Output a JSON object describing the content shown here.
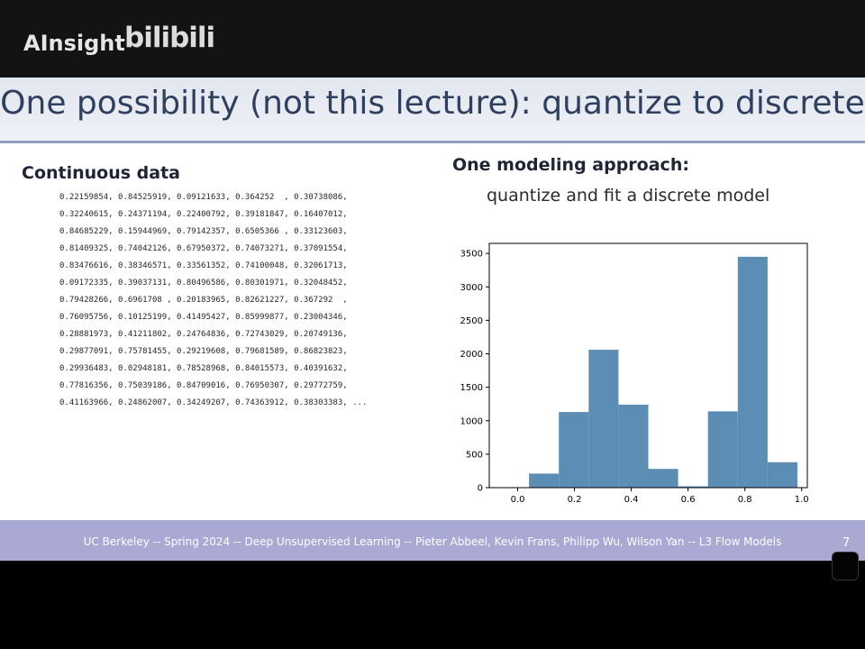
{
  "overlay": {
    "brand": "AInsight",
    "logo_text": "bilibili"
  },
  "slide": {
    "title": "One possibility (not this lecture): quantize to discrete",
    "left_heading": "Continuous data",
    "right_heading": "One modeling approach:",
    "right_subheading": "quantize and fit a discrete model",
    "data_lines": [
      "0.22159854, 0.84525919, 0.09121633, 0.364252  , 0.30738086,",
      "0.32240615, 0.24371194, 0.22400792, 0.39181847, 0.16407012,",
      "0.84685229, 0.15944969, 0.79142357, 0.6505366 , 0.33123603,",
      "0.81409325, 0.74042126, 0.67950372, 0.74073271, 0.37091554,",
      "0.83476616, 0.38346571, 0.33561352, 0.74100048, 0.32061713,",
      "0.09172335, 0.39037131, 0.80496586, 0.80301971, 0.32048452,",
      "0.79428266, 0.6961708 , 0.20183965, 0.82621227, 0.367292  ,",
      "0.76095756, 0.10125199, 0.41495427, 0.85999877, 0.23004346,",
      "0.28881973, 0.41211802, 0.24764836, 0.72743029, 0.20749136,",
      "0.29877091, 0.75781455, 0.29219608, 0.79681589, 0.86823823,",
      "0.29936483, 0.02948181, 0.78528968, 0.84015573, 0.40391632,",
      "0.77816356, 0.75039186, 0.84709016, 0.76950307, 0.29772759,",
      "0.41163966, 0.24862007, 0.34249207, 0.74363912, 0.38303383, ..."
    ],
    "footer": "UC Berkeley -- Spring 2024 -- Deep Unsupervised Learning -- Pieter Abbeel, Kevin Frans, Philipp Wu, Wilson Yan -- L3 Flow Models",
    "page_number": "7"
  },
  "chart_data": {
    "type": "bar",
    "title": "",
    "xlabel": "",
    "ylabel": "",
    "bin_edges": [
      -0.03,
      0.04,
      0.145,
      0.25,
      0.355,
      0.46,
      0.565,
      0.67,
      0.775,
      0.88,
      0.985
    ],
    "values": [
      5,
      210,
      1130,
      2060,
      1240,
      280,
      20,
      1140,
      3450,
      380
    ],
    "xlim": [
      -0.1,
      1.02
    ],
    "ylim": [
      0,
      3650
    ],
    "xticks": [
      0.0,
      0.2,
      0.4,
      0.6,
      0.8,
      1.0
    ],
    "xtick_labels": [
      "0.0",
      "0.2",
      "0.4",
      "0.6",
      "0.8",
      "1.0"
    ],
    "yticks": [
      0,
      500,
      1000,
      1500,
      2000,
      2500,
      3000,
      3500
    ],
    "ytick_labels": [
      "0",
      "500",
      "1000",
      "1500",
      "2000",
      "2500",
      "3000",
      "3500"
    ],
    "bar_color": "#5b8db5",
    "grid": false
  }
}
